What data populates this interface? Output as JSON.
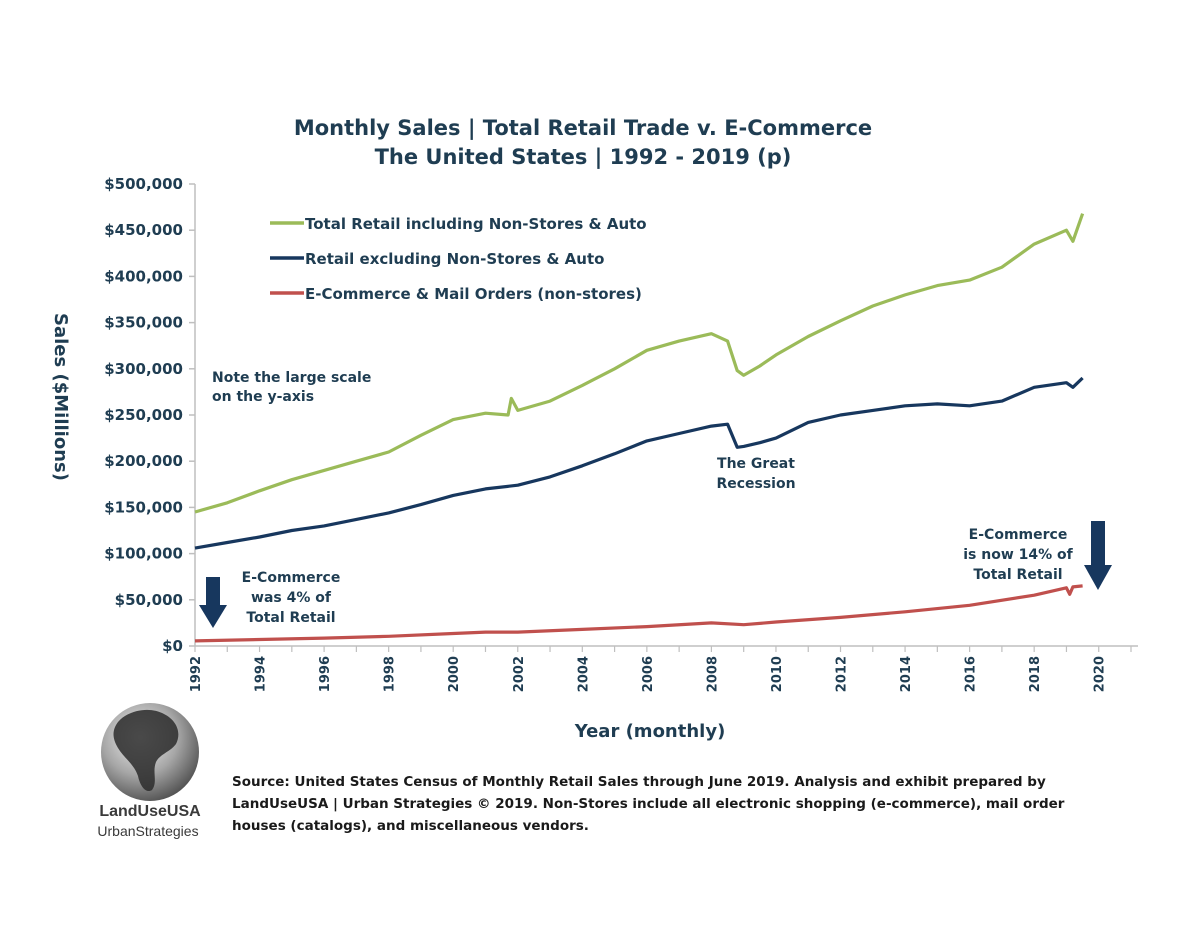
{
  "chart_data": {
    "type": "line",
    "title": [
      "Monthly Sales | Total Retail Trade v. E-Commerce",
      "The United States | 1992 - 2019 (p)"
    ],
    "xlabel": "Year (monthly)",
    "ylabel": "Sales ($Millions)",
    "xlim": [
      1992,
      2021
    ],
    "ylim": [
      0,
      500000
    ],
    "yticks": [
      0,
      50000,
      100000,
      150000,
      200000,
      250000,
      300000,
      350000,
      400000,
      450000,
      500000
    ],
    "ytick_labels": [
      "$0",
      "$50,000",
      "$100,000",
      "$150,000",
      "$200,000",
      "$250,000",
      "$300,000",
      "$350,000",
      "$400,000",
      "$450,000",
      "$500,000"
    ],
    "xticks": [
      "1992",
      "1994",
      "1996",
      "1998",
      "2000",
      "2002",
      "2004",
      "2006",
      "2008",
      "2010",
      "2012",
      "2014",
      "2016",
      "2018",
      "2020"
    ],
    "legend_position": "top-left",
    "series": [
      {
        "name": "Total Retail including Non-Stores & Auto",
        "color": "#9bbb59",
        "x": [
          1992,
          1993,
          1994,
          1995,
          1996,
          1997,
          1998,
          1999,
          2000,
          2001,
          2001.7,
          2001.8,
          2002,
          2003,
          2004,
          2005,
          2006,
          2007,
          2008,
          2008.5,
          2008.8,
          2009,
          2009.5,
          2010,
          2011,
          2012,
          2013,
          2014,
          2015,
          2016,
          2017,
          2018,
          2019,
          2019.2,
          2019.5
        ],
        "y": [
          145000,
          155000,
          168000,
          180000,
          190000,
          200000,
          210000,
          228000,
          245000,
          252000,
          250000,
          268000,
          255000,
          265000,
          282000,
          300000,
          320000,
          330000,
          338000,
          330000,
          298000,
          293000,
          303000,
          315000,
          335000,
          352000,
          368000,
          380000,
          390000,
          396000,
          410000,
          435000,
          450000,
          438000,
          468000
        ]
      },
      {
        "name": "Retail excluding Non-Stores & Auto",
        "color": "#17375e",
        "x": [
          1992,
          1993,
          1994,
          1995,
          1996,
          1997,
          1998,
          1999,
          2000,
          2001,
          2002,
          2003,
          2004,
          2005,
          2006,
          2007,
          2008,
          2008.5,
          2008.8,
          2009,
          2009.5,
          2010,
          2011,
          2012,
          2013,
          2014,
          2015,
          2016,
          2017,
          2018,
          2019,
          2019.2,
          2019.5
        ],
        "y": [
          106000,
          112000,
          118000,
          125000,
          130000,
          137000,
          144000,
          153000,
          163000,
          170000,
          174000,
          183000,
          195000,
          208000,
          222000,
          230000,
          238000,
          240000,
          215000,
          216000,
          220000,
          225000,
          242000,
          250000,
          255000,
          260000,
          262000,
          260000,
          265000,
          280000,
          285000,
          280000,
          290000
        ]
      },
      {
        "name": "E-Commerce & Mail Orders (non-stores)",
        "color": "#c0504d",
        "x": [
          1992,
          1994,
          1996,
          1998,
          2000,
          2001,
          2002,
          2004,
          2006,
          2008,
          2009,
          2010,
          2012,
          2014,
          2016,
          2018,
          2019,
          2019.1,
          2019.2,
          2019.5
        ],
        "y": [
          5500,
          7000,
          8500,
          10500,
          13500,
          15000,
          15000,
          18000,
          21000,
          25000,
          23000,
          26000,
          31000,
          37000,
          44000,
          55000,
          63000,
          56000,
          64000,
          65000
        ]
      }
    ],
    "annotations": [
      {
        "id": "scale-note",
        "lines": [
          "Note the large scale",
          "on the y-axis"
        ]
      },
      {
        "id": "recession-note",
        "lines": [
          "The Great",
          "Recession"
        ]
      },
      {
        "id": "ecom-1992-note",
        "lines": [
          "E-Commerce",
          "was 4% of",
          "Total Retail"
        ]
      },
      {
        "id": "ecom-2019-note",
        "lines": [
          "E-Commerce",
          "is now 14% of",
          "Total Retail"
        ]
      }
    ]
  },
  "source_text": [
    "Source: United States Census of Monthly Retail Sales through June 2019. Analysis and exhibit prepared by",
    "LandUseUSA | Urban Strategies © 2019. Non-Stores include all electronic shopping (e-commerce), mail order",
    "houses (catalogs), and miscellaneous vendors."
  ],
  "logo": {
    "line1": "LandUseUSA",
    "line2": "UrbanStrategies"
  },
  "colors": {
    "text": "#1f3d52",
    "arrow": "#17375e"
  }
}
